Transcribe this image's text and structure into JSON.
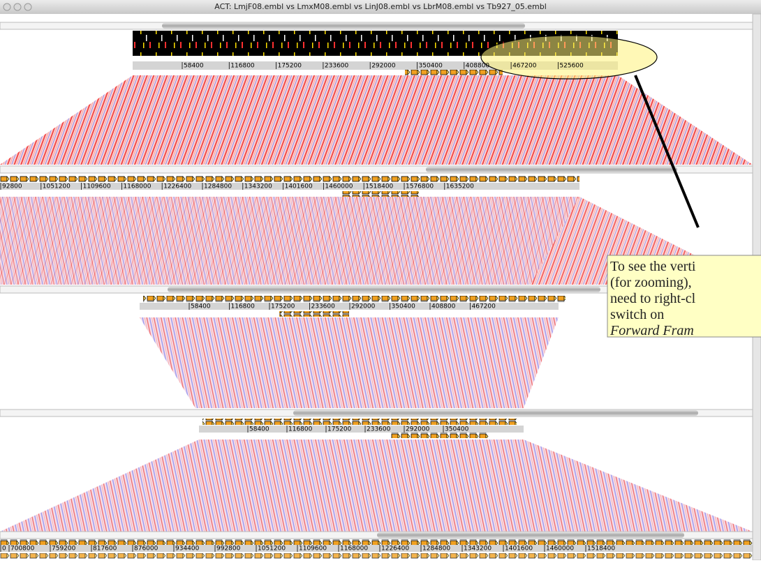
{
  "window": {
    "title": "ACT: LmjF08.embl vs LmxM08.embl vs LinJ08.embl vs LbrM08.embl vs Tb927_05.embl"
  },
  "rulers": [
    {
      "labels": [
        "58400",
        "116800",
        "175200",
        "233600",
        "292000",
        "350400",
        "408800",
        "467200",
        "525600"
      ]
    },
    {
      "labels": [
        "92800",
        "1051200",
        "1109600",
        "1168000",
        "1226400",
        "1284800",
        "1343200",
        "1401600",
        "1460000",
        "1518400",
        "1576800",
        "1635200"
      ]
    },
    {
      "labels": [
        "58400",
        "116800",
        "175200",
        "233600",
        "292000",
        "350400",
        "408800",
        "467200"
      ]
    },
    {
      "labels": [
        "58400",
        "116800",
        "175200",
        "233600",
        "292000",
        "350400"
      ]
    },
    {
      "labels": [
        "0",
        "700800",
        "759200",
        "817600",
        "876000",
        "934400",
        "992800",
        "1051200",
        "1109600",
        "1168000",
        "1226400",
        "1284800",
        "1343200",
        "1401600",
        "1460000",
        "1518400"
      ]
    }
  ],
  "callout": {
    "lines": [
      "To see the verti",
      "(for zooming),",
      "need to right-cl",
      "switch on",
      "Forward Fram"
    ]
  }
}
